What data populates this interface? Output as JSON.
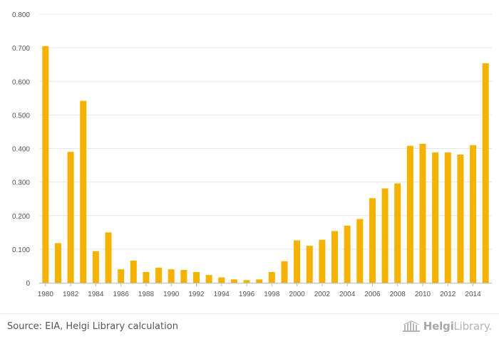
{
  "chart_data": {
    "type": "bar",
    "title": "",
    "xlabel": "",
    "ylabel": "",
    "categories": [
      "1980",
      "1981",
      "1982",
      "1983",
      "1984",
      "1985",
      "1986",
      "1987",
      "1988",
      "1989",
      "1990",
      "1991",
      "1992",
      "1993",
      "1994",
      "1995",
      "1996",
      "1997",
      "1998",
      "1999",
      "2000",
      "2001",
      "2002",
      "2003",
      "2004",
      "2005",
      "2006",
      "2007",
      "2008",
      "2009",
      "2010",
      "2011",
      "2012",
      "2013",
      "2014",
      "2015"
    ],
    "x_tick_labels": [
      "1980",
      "1982",
      "1984",
      "1986",
      "1988",
      "1990",
      "1992",
      "1994",
      "1996",
      "1998",
      "2000",
      "2002",
      "2004",
      "2006",
      "2008",
      "2010",
      "2012",
      "2014"
    ],
    "values": [
      0.705,
      0.118,
      0.39,
      0.542,
      0.094,
      0.15,
      0.04,
      0.066,
      0.032,
      0.045,
      0.04,
      0.038,
      0.032,
      0.023,
      0.016,
      0.01,
      0.008,
      0.01,
      0.032,
      0.064,
      0.126,
      0.11,
      0.128,
      0.154,
      0.17,
      0.19,
      0.252,
      0.281,
      0.296,
      0.408,
      0.414,
      0.388,
      0.388,
      0.382,
      0.41,
      0.654
    ],
    "ylim": [
      0,
      0.8
    ],
    "y_ticks": [
      "0",
      "0.100",
      "0.200",
      "0.300",
      "0.400",
      "0.500",
      "0.600",
      "0.700",
      "0.800"
    ],
    "grid": true,
    "bar_color": "#f5b200",
    "grid_color": "#e6e6e6",
    "axis_color": "#bbbbbb",
    "tick_label_color": "#555555"
  },
  "footer": {
    "source": "Source: EIA, Helgi Library calculation",
    "logo": {
      "icon": "library-building-icon",
      "text_bold": "Helgi",
      "text_regular": "Library."
    }
  }
}
